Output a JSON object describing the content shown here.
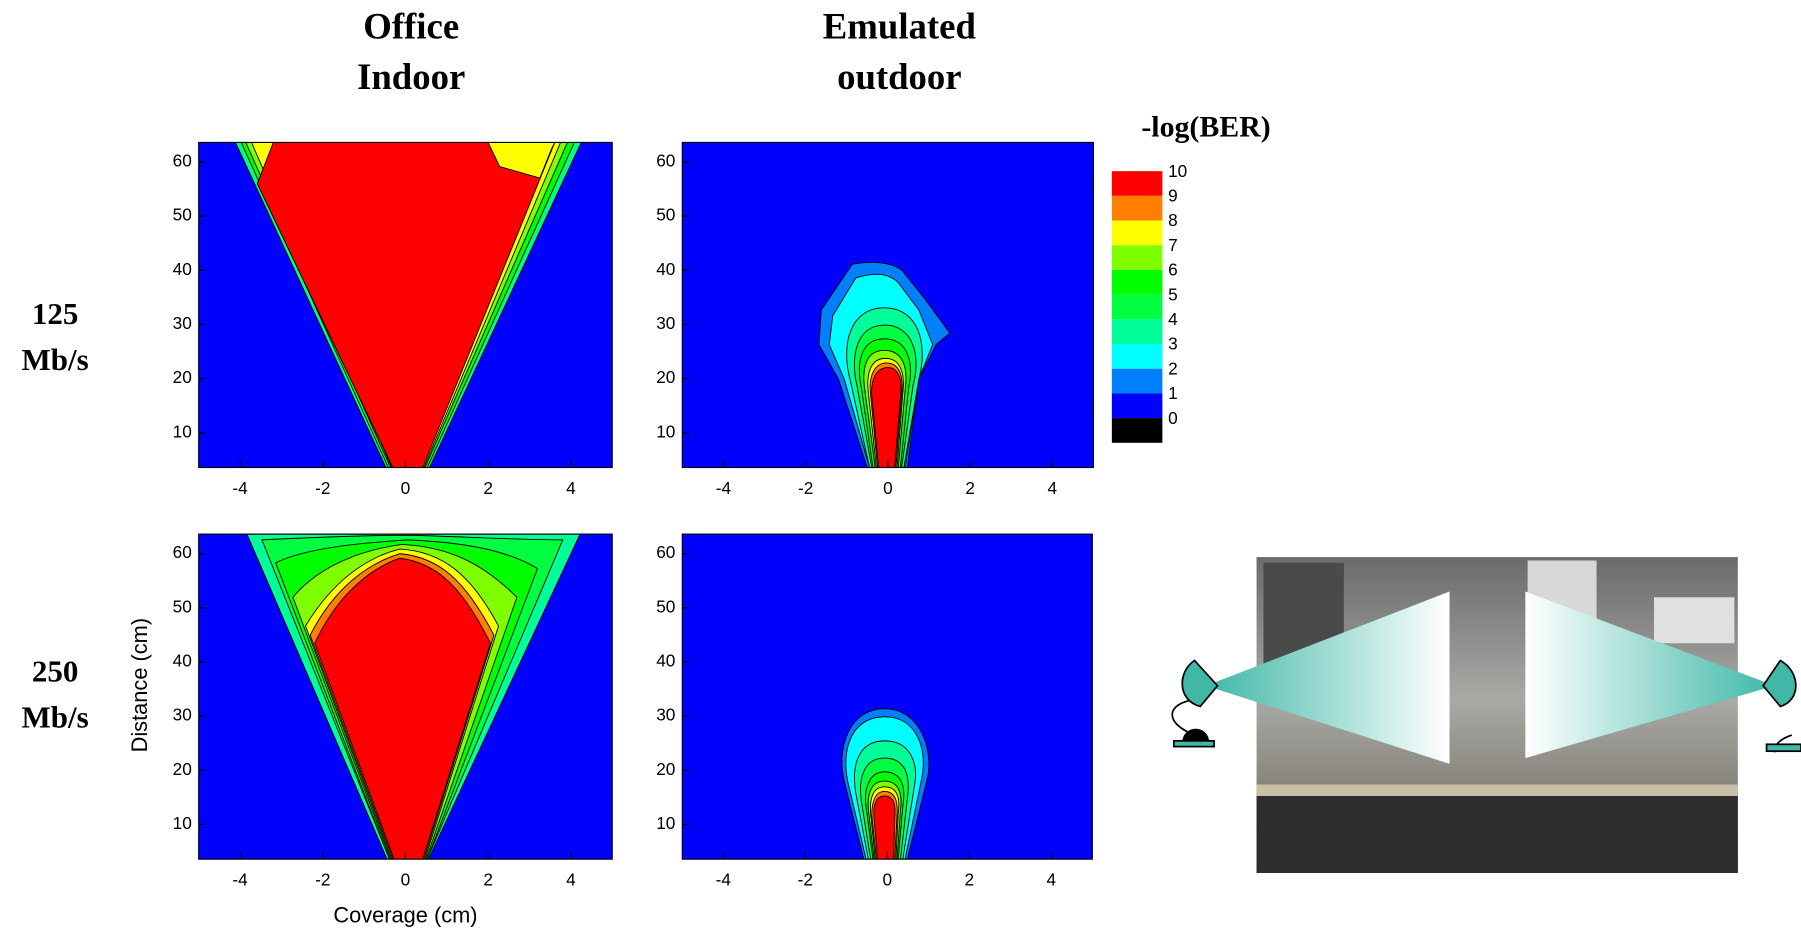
{
  "column_titles": [
    [
      "Office",
      "Indoor"
    ],
    [
      "Emulated",
      "outdoor"
    ]
  ],
  "row_labels": [
    [
      "125",
      "Mb/s"
    ],
    [
      "250",
      "Mb/s"
    ]
  ],
  "chart_data": [
    {
      "type": "contour",
      "xlim": [
        -5,
        5
      ],
      "ylim": [
        3.6,
        63.6
      ],
      "xticks": [
        -4,
        -2,
        0,
        2,
        4
      ],
      "yticks": [
        10,
        20,
        30,
        40,
        50,
        60
      ]
    },
    {
      "type": "contour",
      "xlim": [
        -5,
        5
      ],
      "ylim": [
        3.6,
        63.6
      ],
      "xticks": [
        -4,
        -2,
        0,
        2,
        4
      ],
      "yticks": [
        10,
        20,
        30,
        40,
        50,
        60
      ]
    },
    {
      "type": "contour",
      "xlim": [
        -5,
        5
      ],
      "ylim": [
        3.6,
        63.6
      ],
      "xticks": [
        -4,
        -2,
        0,
        2,
        4
      ],
      "yticks": [
        10,
        20,
        30,
        40,
        50,
        60
      ],
      "x_label": "Coverage (cm)",
      "y_label": "Distance (cm)"
    },
    {
      "type": "contour",
      "xlim": [
        -5,
        5
      ],
      "ylim": [
        3.6,
        63.6
      ],
      "xticks": [
        -4,
        -2,
        0,
        2,
        4
      ],
      "yticks": [
        10,
        20,
        30,
        40,
        50,
        60
      ]
    }
  ],
  "colorbar": {
    "title": "-log(BER)",
    "levels": [
      10,
      9,
      8,
      7,
      6,
      5,
      4,
      3,
      2,
      1,
      0
    ],
    "colors": [
      "#ff0000",
      "#ff8000",
      "#ffff00",
      "#80ff00",
      "#00ff00",
      "#00ff40",
      "#00ff99",
      "#00ffff",
      "#0080ff",
      "#0000ff",
      "#000000"
    ]
  }
}
